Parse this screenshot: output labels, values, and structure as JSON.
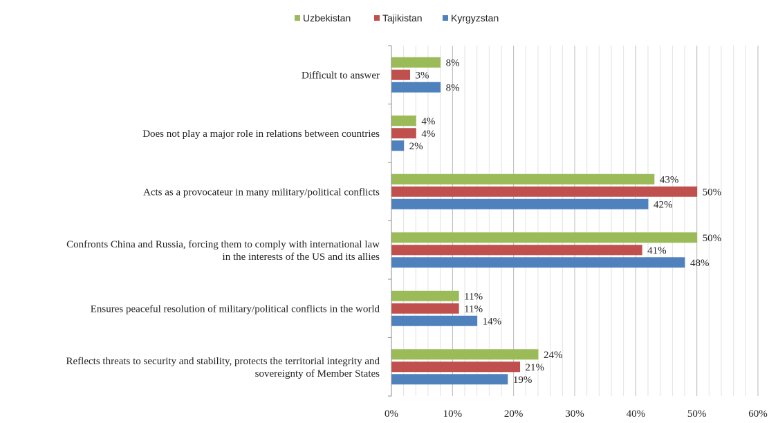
{
  "chart_data": {
    "type": "bar",
    "orientation": "horizontal",
    "title": "",
    "xlabel": "",
    "ylabel": "",
    "xlim": [
      0,
      60
    ],
    "tick_step": 10,
    "minor_step": 2,
    "grid": true,
    "legend_position": "top-center",
    "categories": [
      [
        "Difficult to answer"
      ],
      [
        "Does not play a major role in relations between countries"
      ],
      [
        "Acts as a provocateur in many military/political conflicts"
      ],
      [
        "Confronts China and Russia, forcing them to comply with international law",
        "in the interests of the US and its allies"
      ],
      [
        "Ensures peaceful resolution of military/political conflicts in the world"
      ],
      [
        "Reflects threats to security and stability, protects the territorial integrity and",
        "sovereignty of Member States"
      ]
    ],
    "tick_labels": [
      "0%",
      "10%",
      "20%",
      "30%",
      "40%",
      "50%",
      "60%"
    ],
    "series": [
      {
        "name": "Uzbekistan",
        "color": "#9bbb59",
        "values": [
          8,
          4,
          43,
          50,
          11,
          24
        ],
        "labels": [
          "8%",
          "4%",
          "43%",
          "50%",
          "11%",
          "24%"
        ]
      },
      {
        "name": "Tajikistan",
        "color": "#c0504d",
        "values": [
          3,
          4,
          50,
          41,
          11,
          21
        ],
        "labels": [
          "3%",
          "4%",
          "50%",
          "41%",
          "11%",
          "21%"
        ]
      },
      {
        "name": "Kyrgyzstan",
        "color": "#4f81bd",
        "values": [
          8,
          2,
          42,
          48,
          14,
          19
        ],
        "labels": [
          "8%",
          "2%",
          "42%",
          "48%",
          "14%",
          "19%"
        ]
      }
    ]
  }
}
